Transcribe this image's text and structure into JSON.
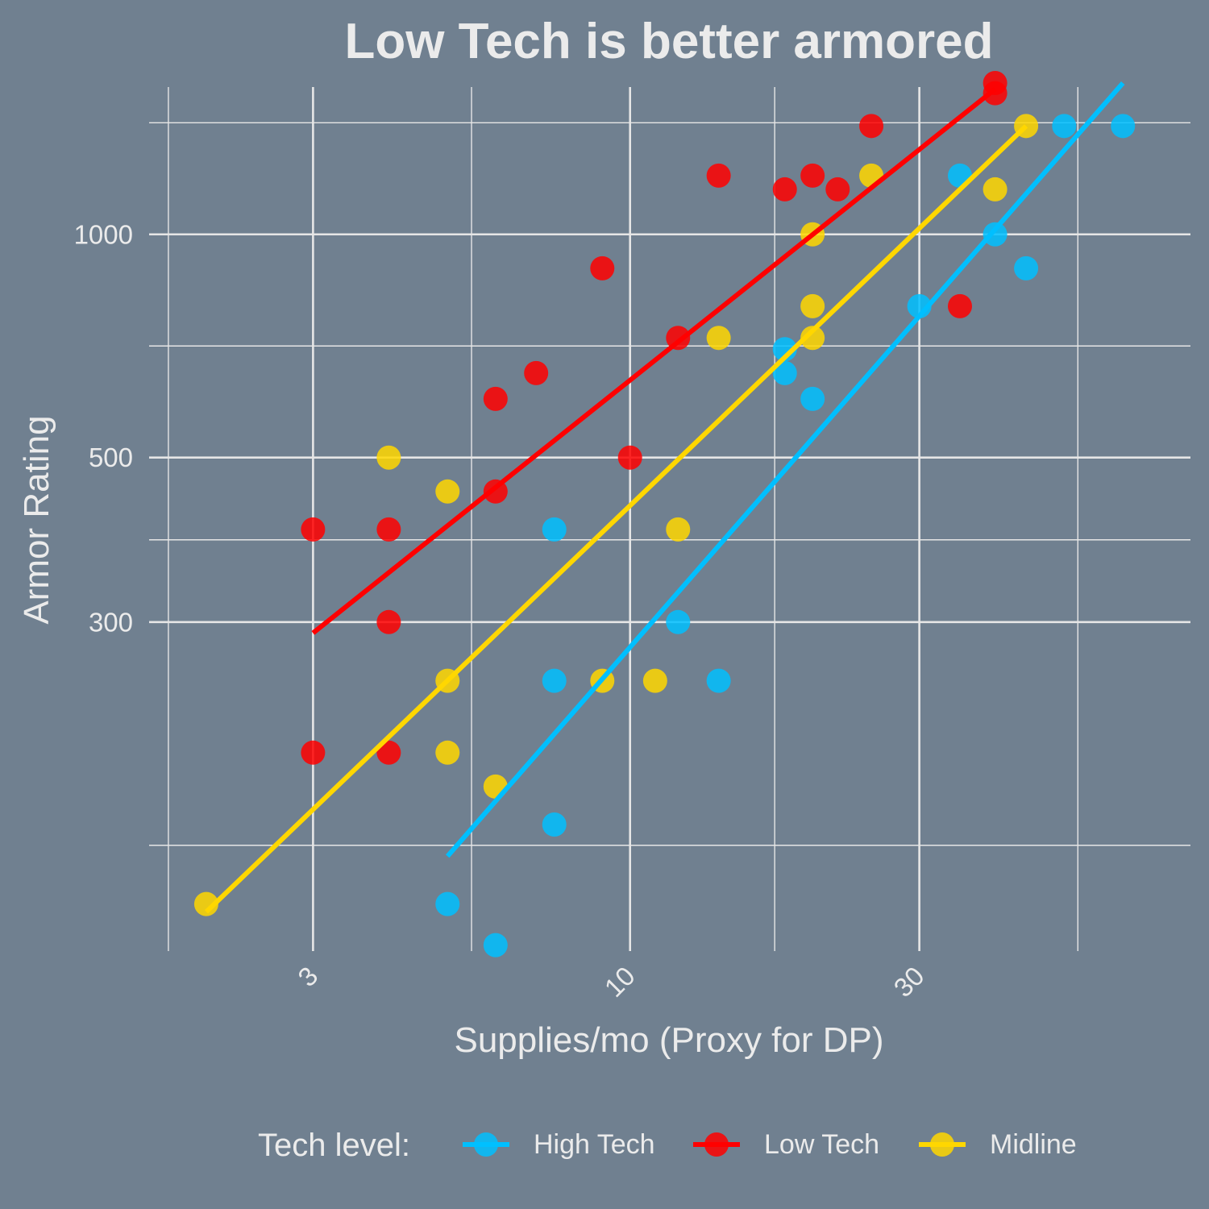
{
  "chart_data": {
    "type": "scatter",
    "title": "Low Tech is better armored",
    "xlabel": "Supplies/mo (Proxy for DP)",
    "ylabel": "Armor Rating",
    "x_scale": "log10",
    "y_scale": "log10",
    "xlim": [
      1.67,
      84
    ],
    "ylim": [
      108,
      1580
    ],
    "x_major_ticks": [
      3,
      10,
      30
    ],
    "x_minor_ticks": [
      1.732,
      5.477,
      17.32,
      54.77
    ],
    "y_major_ticks": [
      300,
      500,
      1000
    ],
    "y_minor_ticks": [
      150,
      387.3,
      707.1,
      1414
    ],
    "x_tick_labels": [
      "3",
      "10",
      "30"
    ],
    "y_tick_labels": [
      "300",
      "500",
      "1000"
    ],
    "grid": true,
    "legend": {
      "title": "Tech level:",
      "position": "bottom"
    },
    "series": [
      {
        "name": "High Tech",
        "color": "#00bfff",
        "points": [
          [
            5,
            125
          ],
          [
            6,
            110
          ],
          [
            7.5,
            160
          ],
          [
            7.5,
            250
          ],
          [
            7.5,
            400
          ],
          [
            12,
            300
          ],
          [
            14,
            250
          ],
          [
            18,
            700
          ],
          [
            18,
            650
          ],
          [
            20,
            600
          ],
          [
            30,
            800
          ],
          [
            35,
            1200
          ],
          [
            40,
            1000
          ],
          [
            45,
            900
          ],
          [
            52,
            1400
          ],
          [
            65,
            1400
          ]
        ],
        "trend": [
          [
            5,
            145
          ],
          [
            65,
            1600
          ]
        ]
      },
      {
        "name": "Low Tech",
        "color": "#ff0000",
        "points": [
          [
            3,
            400
          ],
          [
            3,
            200
          ],
          [
            4,
            400
          ],
          [
            4,
            300
          ],
          [
            4,
            200
          ],
          [
            6,
            600
          ],
          [
            6,
            450
          ],
          [
            7,
            650
          ],
          [
            9,
            900
          ],
          [
            10,
            500
          ],
          [
            12,
            725
          ],
          [
            14,
            1200
          ],
          [
            18,
            1150
          ],
          [
            20,
            1200
          ],
          [
            22,
            1150
          ],
          [
            25,
            1400
          ],
          [
            35,
            800
          ],
          [
            40,
            1600
          ],
          [
            40,
            1550
          ]
        ],
        "trend": [
          [
            3,
            290
          ],
          [
            40,
            1570
          ]
        ]
      },
      {
        "name": "Midline",
        "color": "#ffd700",
        "points": [
          [
            2,
            125
          ],
          [
            4,
            500
          ],
          [
            5,
            450
          ],
          [
            5,
            250
          ],
          [
            5,
            200
          ],
          [
            6,
            180
          ],
          [
            9,
            250
          ],
          [
            11,
            250
          ],
          [
            12,
            400
          ],
          [
            14,
            725
          ],
          [
            20,
            1000
          ],
          [
            20,
            800
          ],
          [
            20,
            725
          ],
          [
            25,
            1200
          ],
          [
            40,
            1150
          ],
          [
            45,
            1400
          ]
        ],
        "trend": [
          [
            2,
            122
          ],
          [
            45,
            1400
          ]
        ]
      }
    ]
  }
}
